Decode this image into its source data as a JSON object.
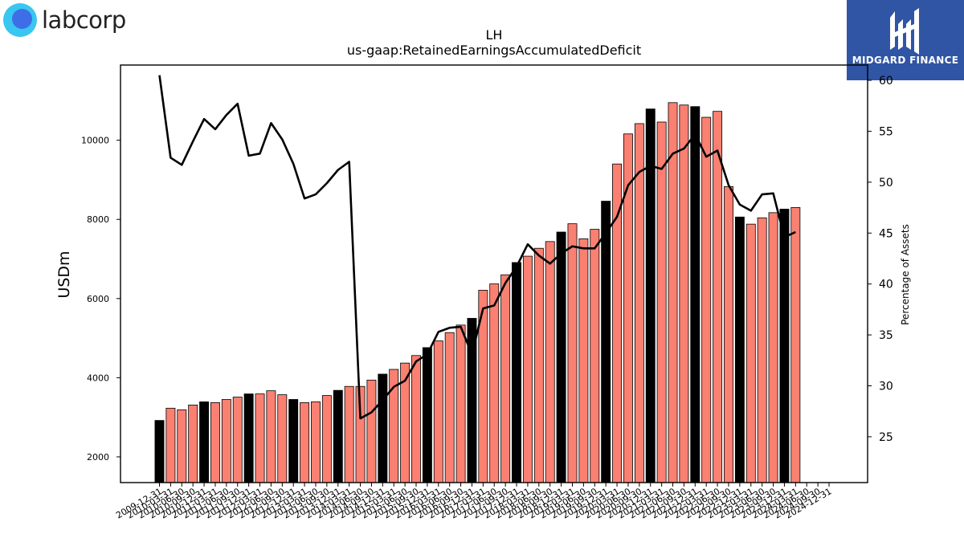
{
  "brand": {
    "left_logo_text": "labcorp",
    "right_logo_text": "MIDGARD FINANCE"
  },
  "chart_data": {
    "type": "bar",
    "title": "LH",
    "subtitle": "us-gaap:RetainedEarningsAccumulatedDeficit",
    "ylabel": "USDm",
    "y2label": "Percentage of Assets",
    "ylim": [
      1350,
      11900
    ],
    "y2lim": [
      20.5,
      61.5
    ],
    "yticks": [
      2000,
      4000,
      6000,
      8000,
      10000
    ],
    "y2ticks": [
      25,
      30,
      35,
      40,
      45,
      50,
      55,
      60
    ],
    "categories": [
      "2009-12-31",
      "2010-03-31",
      "2010-06-30",
      "2010-09-30",
      "2010-12-31",
      "2011-03-31",
      "2011-06-30",
      "2011-09-30",
      "2011-12-31",
      "2012-03-31",
      "2012-06-30",
      "2012-09-30",
      "2012-12-31",
      "2013-03-31",
      "2013-06-30",
      "2013-09-30",
      "2013-12-31",
      "2014-03-31",
      "2014-06-30",
      "2014-09-30",
      "2014-12-31",
      "2015-03-31",
      "2015-06-30",
      "2015-09-30",
      "2015-12-31",
      "2016-03-31",
      "2016-06-30",
      "2016-09-30",
      "2016-12-31",
      "2017-03-31",
      "2017-06-30",
      "2017-09-30",
      "2017-12-31",
      "2018-03-31",
      "2018-06-30",
      "2018-09-30",
      "2018-12-31",
      "2019-03-31",
      "2019-06-30",
      "2019-09-30",
      "2019-12-31",
      "2020-03-31",
      "2020-06-30",
      "2020-09-30",
      "2020-12-31",
      "2021-03-31",
      "2021-06-30",
      "2021-09-30",
      "2021-12-31",
      "2022-03-31",
      "2022-06-30",
      "2022-09-30",
      "2022-12-31",
      "2023-03-31",
      "2023-06-30",
      "2023-09-30",
      "2023-12-31",
      "2024-03-31",
      "2024-06-30",
      "2024-09-30",
      "2024-12-31"
    ],
    "tick_labels": [
      "2009-12-31",
      "2010-03-31",
      "2010-06-30",
      "2010-09-30",
      "2010-12-31",
      "2011-03-31",
      "2011-06-30",
      "2011-09-30",
      "2011-12-31",
      "2012-03-31",
      "2012-06-30",
      "2012-09-30",
      "2012-12-31",
      "2013-03-31",
      "2013-06-30",
      "2013-09-30",
      "2013-12-31",
      "2014-03-31",
      "2014-06-30",
      "2014-09-30",
      "2014-12-31",
      "2015-03-31",
      "2015-06-30",
      "2015-09-30",
      "2015-12-31",
      "2016-03-31",
      "2016-06-30",
      "2016-09-30",
      "2016-12-31",
      "2017-03-31",
      "2017-06-30",
      "2017-09-30",
      "2017-12-31",
      "2018-03-31",
      "2018-06-30",
      "2018-09-30",
      "2018-12-31",
      "2019-03-31",
      "2019-06-30",
      "2019-09-30",
      "2019-12-31",
      "2020-03-31",
      "2020-06-30",
      "2020-09-30",
      "2020-12-31",
      "2021-03-31",
      "2021-06-30",
      "2021-09-30",
      "2021-12-31",
      "2022-03-31",
      "2022-06-30",
      "2022-09-30",
      "2022-12-31",
      "2023-03-31",
      "2023-06-30",
      "2023-09-30",
      "2023-12-31",
      "2024-03-31",
      "2024-06-30",
      "2024-09-30",
      "2024-12-31"
    ],
    "series": [
      {
        "type": "bar",
        "axis": "left",
        "values": [
          2920,
          3230,
          3190,
          3310,
          3390,
          3370,
          3450,
          3510,
          3590,
          3590,
          3670,
          3570,
          3450,
          3370,
          3390,
          3550,
          3680,
          3780,
          3780,
          3940,
          4090,
          4210,
          4370,
          4560,
          4760,
          4930,
          5140,
          5330,
          5500,
          6210,
          6370,
          6600,
          6910,
          7070,
          7270,
          7440,
          7680,
          7890,
          7510,
          7750,
          8460,
          9400,
          10160,
          10420,
          10790,
          10460,
          10950,
          10890,
          10850,
          10580,
          10730,
          8830,
          8060,
          7880,
          8040,
          8170,
          8260,
          8300,
          null,
          null,
          null
        ],
        "highlight_quarter": "12-31"
      },
      {
        "type": "line",
        "axis": "right",
        "values": [
          60.5,
          52.4,
          51.7,
          54.0,
          56.2,
          55.2,
          56.6,
          57.7,
          52.6,
          52.8,
          55.8,
          54.2,
          51.8,
          48.4,
          48.8,
          49.9,
          51.2,
          52.0,
          26.8,
          27.4,
          28.6,
          29.9,
          30.5,
          32.4,
          33.1,
          35.3,
          35.7,
          35.8,
          33.1,
          37.6,
          37.9,
          40.1,
          41.7,
          43.9,
          42.8,
          42.0,
          43.0,
          43.7,
          43.5,
          43.5,
          45.0,
          46.6,
          49.7,
          51.0,
          51.6,
          51.3,
          52.8,
          53.3,
          54.7,
          52.5,
          53.1,
          49.7,
          47.8,
          47.2,
          48.8,
          48.9,
          44.6,
          45.1,
          null,
          null,
          null
        ],
        "color": "#000000"
      }
    ],
    "colors": {
      "bar_default": "#fa8072",
      "bar_highlight": "#000000",
      "line": "#000000"
    },
    "grid": false,
    "legend": "none"
  }
}
